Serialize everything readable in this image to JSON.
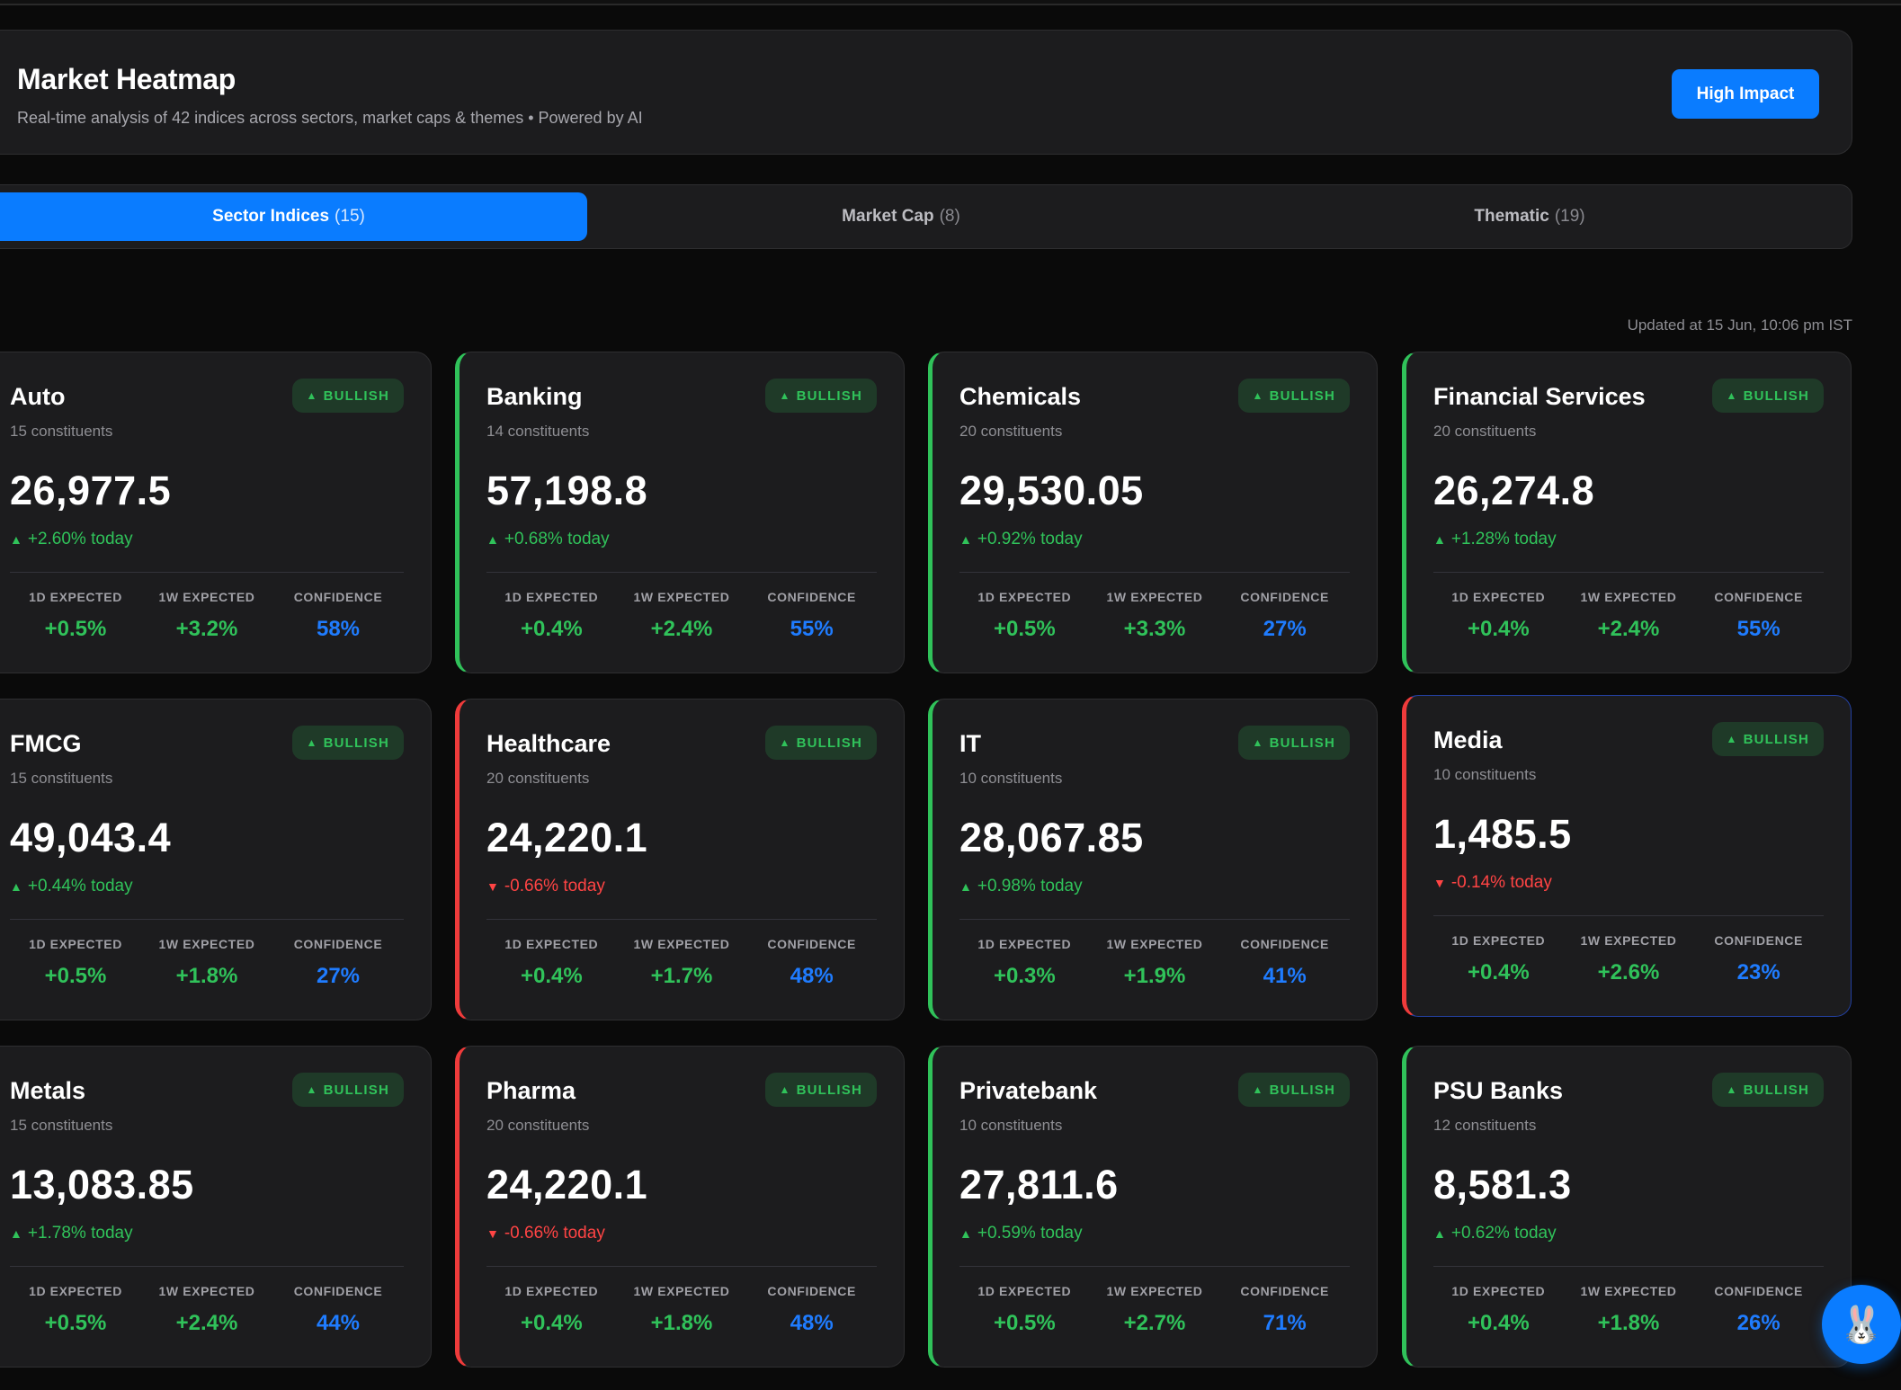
{
  "header": {
    "title": "Market Heatmap",
    "subtitle": "Real-time analysis of 42 indices across sectors, market caps & themes • Powered by AI",
    "high_impact_label": "High Impact"
  },
  "tabs": [
    {
      "label": "Sector Indices",
      "count": "(15)",
      "active": true
    },
    {
      "label": "Market Cap",
      "count": "(8)",
      "active": false
    },
    {
      "label": "Thematic",
      "count": "(19)",
      "active": false
    }
  ],
  "updated_text": "Updated at 15 Jun, 10:06 pm IST",
  "metric_labels": {
    "d1": "1D EXPECTED",
    "w1": "1W EXPECTED",
    "conf": "CONFIDENCE"
  },
  "cards": [
    {
      "name": "Auto",
      "constituents": "15 constituents",
      "badge": "BULLISH",
      "value": "26,977.5",
      "change": "+2.60% today",
      "direction": "up",
      "d1": "+0.5%",
      "w1": "+3.2%",
      "conf": "58%",
      "accent": "none"
    },
    {
      "name": "Banking",
      "constituents": "14 constituents",
      "badge": "BULLISH",
      "value": "57,198.8",
      "change": "+0.68% today",
      "direction": "up",
      "d1": "+0.4%",
      "w1": "+2.4%",
      "conf": "55%",
      "accent": "green"
    },
    {
      "name": "Chemicals",
      "constituents": "20 constituents",
      "badge": "BULLISH",
      "value": "29,530.05",
      "change": "+0.92% today",
      "direction": "up",
      "d1": "+0.5%",
      "w1": "+3.3%",
      "conf": "27%",
      "accent": "green"
    },
    {
      "name": "Financial Services",
      "constituents": "20 constituents",
      "badge": "BULLISH",
      "value": "26,274.8",
      "change": "+1.28% today",
      "direction": "up",
      "d1": "+0.4%",
      "w1": "+2.4%",
      "conf": "55%",
      "accent": "green"
    },
    {
      "name": "FMCG",
      "constituents": "15 constituents",
      "badge": "BULLISH",
      "value": "49,043.4",
      "change": "+0.44% today",
      "direction": "up",
      "d1": "+0.5%",
      "w1": "+1.8%",
      "conf": "27%",
      "accent": "none"
    },
    {
      "name": "Healthcare",
      "constituents": "20 constituents",
      "badge": "BULLISH",
      "value": "24,220.1",
      "change": "-0.66% today",
      "direction": "down",
      "d1": "+0.4%",
      "w1": "+1.7%",
      "conf": "48%",
      "accent": "red"
    },
    {
      "name": "IT",
      "constituents": "10 constituents",
      "badge": "BULLISH",
      "value": "28,067.85",
      "change": "+0.98% today",
      "direction": "up",
      "d1": "+0.3%",
      "w1": "+1.9%",
      "conf": "41%",
      "accent": "green"
    },
    {
      "name": "Media",
      "constituents": "10 constituents",
      "badge": "BULLISH",
      "value": "1,485.5",
      "change": "-0.14% today",
      "direction": "down",
      "d1": "+0.4%",
      "w1": "+2.6%",
      "conf": "23%",
      "accent": "red",
      "selected": true
    },
    {
      "name": "Metals",
      "constituents": "15 constituents",
      "badge": "BULLISH",
      "value": "13,083.85",
      "change": "+1.78% today",
      "direction": "up",
      "d1": "+0.5%",
      "w1": "+2.4%",
      "conf": "44%",
      "accent": "none"
    },
    {
      "name": "Pharma",
      "constituents": "20 constituents",
      "badge": "BULLISH",
      "value": "24,220.1",
      "change": "-0.66% today",
      "direction": "down",
      "d1": "+0.4%",
      "w1": "+1.8%",
      "conf": "48%",
      "accent": "red"
    },
    {
      "name": "Privatebank",
      "constituents": "10 constituents",
      "badge": "BULLISH",
      "value": "27,811.6",
      "change": "+0.59% today",
      "direction": "up",
      "d1": "+0.5%",
      "w1": "+2.7%",
      "conf": "71%",
      "accent": "green"
    },
    {
      "name": "PSU Banks",
      "constituents": "12 constituents",
      "badge": "BULLISH",
      "value": "8,581.3",
      "change": "+0.62% today",
      "direction": "up",
      "d1": "+0.4%",
      "w1": "+1.8%",
      "conf": "26%",
      "accent": "green"
    }
  ],
  "icons": {
    "up": "triangle-up-icon",
    "down": "triangle-down-icon",
    "bot": "rabbit-avatar-icon"
  },
  "colors": {
    "accent": "#0a7cff",
    "bullish": "#30c25a",
    "bearish": "#ff4444",
    "confidence": "#1f7cff"
  }
}
